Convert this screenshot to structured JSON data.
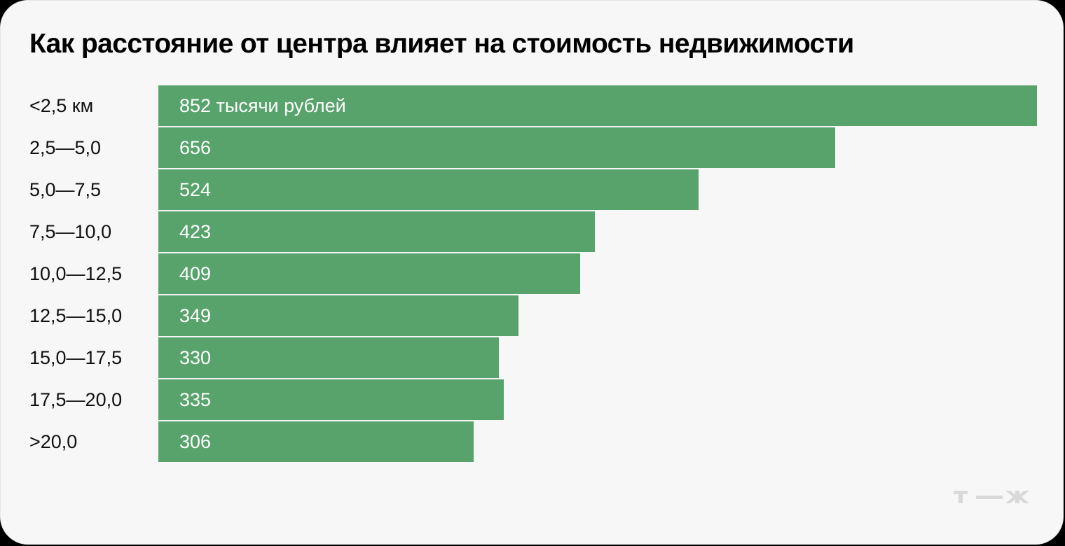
{
  "title": "Как расстояние от центра влияет на стоимость недвижимости",
  "bars": [
    {
      "label": "<2,5 км",
      "value": 852,
      "text": "852 тысячи рублей"
    },
    {
      "label": "2,5—5,0",
      "value": 656,
      "text": "656"
    },
    {
      "label": "5,0—7,5",
      "value": 524,
      "text": "524"
    },
    {
      "label": "7,5—10,0",
      "value": 423,
      "text": "423"
    },
    {
      "label": "10,0—12,5",
      "value": 409,
      "text": "409"
    },
    {
      "label": "12,5—15,0",
      "value": 349,
      "text": "349"
    },
    {
      "label": "15,0—17,5",
      "value": 330,
      "text": "330"
    },
    {
      "label": "17,5—20,0",
      "value": 335,
      "text": "335"
    },
    {
      "label": ">20,0",
      "value": 306,
      "text": "306"
    }
  ],
  "colors": {
    "bar": "#57a36b",
    "background": "#f7f7f7",
    "logo": "#d9d9d9"
  },
  "logo": {
    "icon": "tzh-logo-icon",
    "text": "т—ж"
  },
  "chart_data": {
    "type": "bar",
    "orientation": "horizontal",
    "title": "Как расстояние от центра влияет на стоимость недвижимости",
    "categories": [
      "<2,5 км",
      "2,5—5,0",
      "5,0—7,5",
      "7,5—10,0",
      "10,0—12,5",
      "12,5—15,0",
      "15,0—17,5",
      "17,5—20,0",
      ">20,0"
    ],
    "values": [
      852,
      656,
      524,
      423,
      409,
      349,
      330,
      335,
      306
    ],
    "unit": "тысячи рублей",
    "xlabel": "",
    "ylabel": "",
    "grid": false,
    "legend": null
  }
}
